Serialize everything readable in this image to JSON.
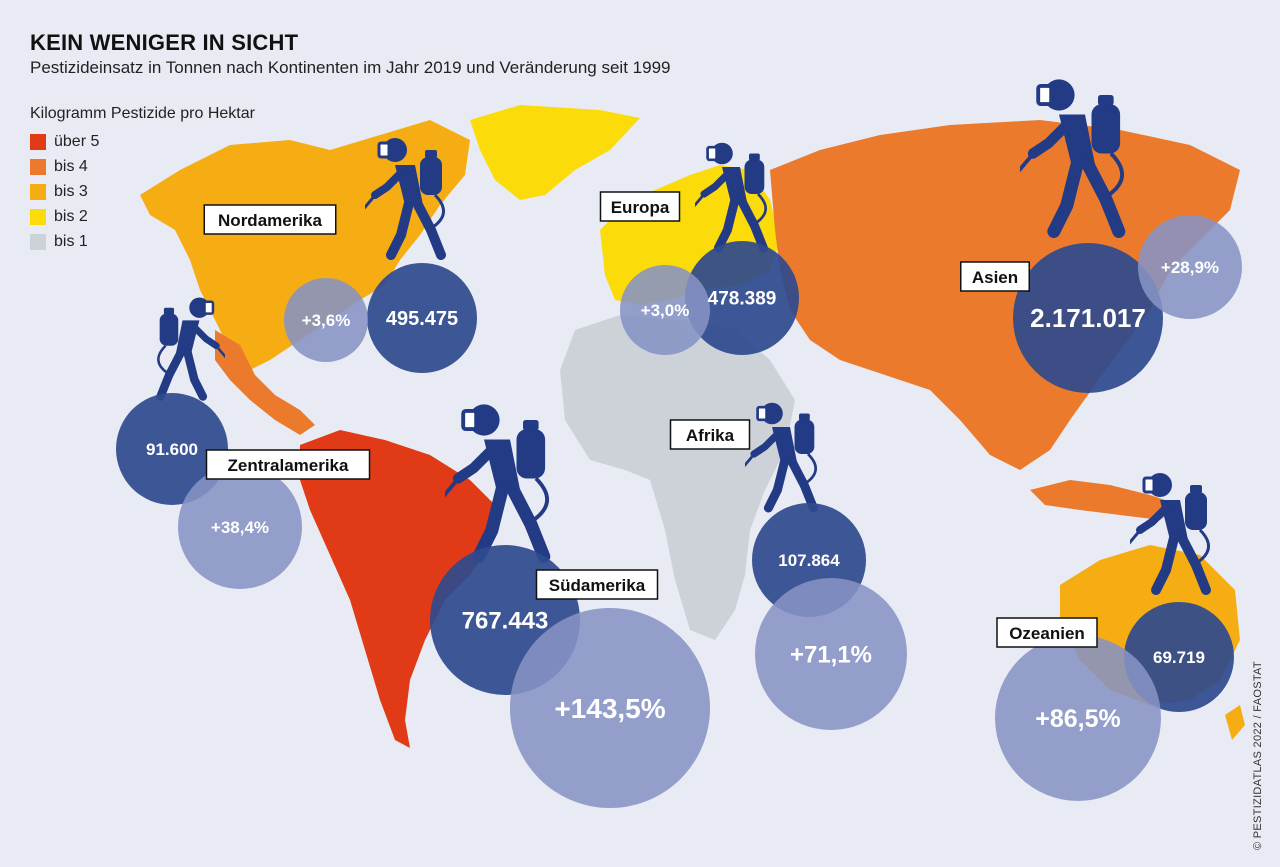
{
  "title": "KEIN WENIGER IN SICHT",
  "subtitle": "Pestizideinsatz in Tonnen nach Kontinenten im Jahr 2019 und Veränderung seit 1999",
  "legend": {
    "title": "Kilogramm Pestizide pro Hektar",
    "items": [
      {
        "label": "über 5",
        "color": "#e13a16"
      },
      {
        "label": "bis 4",
        "color": "#ec7a2c"
      },
      {
        "label": "bis 3",
        "color": "#f6ad14"
      },
      {
        "label": "bis 2",
        "color": "#fbdb0a"
      },
      {
        "label": "bis 1",
        "color": "#cdd1d8"
      }
    ]
  },
  "colors": {
    "volume": "#2f4a8e",
    "change": "#8693c4",
    "icon": "#233b85"
  },
  "source": "© PESTIZIDATLAS 2022 / FAOSTAT",
  "continents": [
    {
      "name": "Nordamerika",
      "tonnes": "495.475",
      "change": "+3,6%"
    },
    {
      "name": "Europa",
      "tonnes": "478.389",
      "change": "+3,0%"
    },
    {
      "name": "Asien",
      "tonnes": "2.171.017",
      "change": "+28,9%"
    },
    {
      "name": "Zentralamerika",
      "tonnes": "91.600",
      "change": "+38,4%"
    },
    {
      "name": "Südamerika",
      "tonnes": "767.443",
      "change": "+143,5%"
    },
    {
      "name": "Afrika",
      "tonnes": "107.864",
      "change": "+71,1%"
    },
    {
      "name": "Ozeanien",
      "tonnes": "69.719",
      "change": "+86,5%"
    }
  ]
}
